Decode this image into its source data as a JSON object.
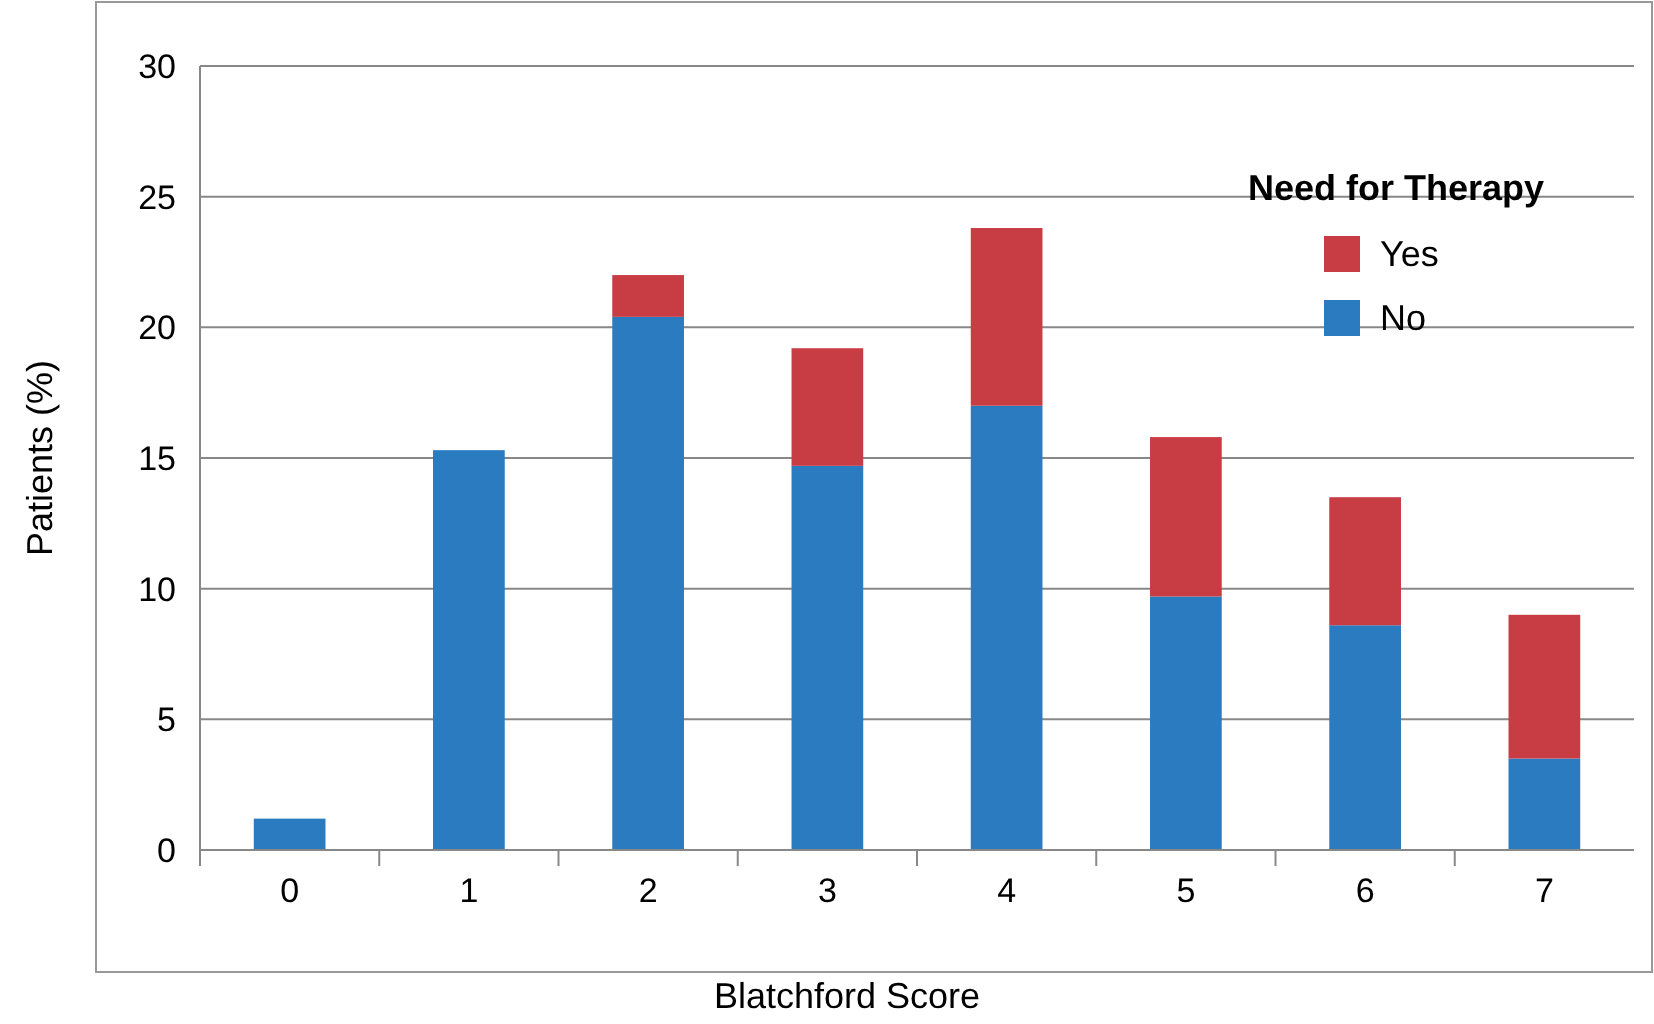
{
  "chart_data": {
    "type": "bar",
    "stacked": true,
    "xlabel": "Blatchford Score",
    "ylabel": "Patients (%)",
    "legend_title": "Need for Therapy",
    "legend": "top right",
    "grid": "y",
    "categories": [
      "0",
      "1",
      "2",
      "3",
      "4",
      "5",
      "6",
      "7"
    ],
    "ylim": [
      0,
      30
    ],
    "yticks": [
      0,
      5,
      10,
      15,
      20,
      25,
      30
    ],
    "series": [
      {
        "name": "No",
        "color": "#2b7bc0",
        "values": [
          1.2,
          15.3,
          20.4,
          14.7,
          17.0,
          9.7,
          8.6,
          3.5
        ]
      },
      {
        "name": "Yes",
        "color": "#c83c44",
        "values": [
          0,
          0,
          1.6,
          4.5,
          6.8,
          6.1,
          4.9,
          5.5
        ]
      }
    ]
  }
}
